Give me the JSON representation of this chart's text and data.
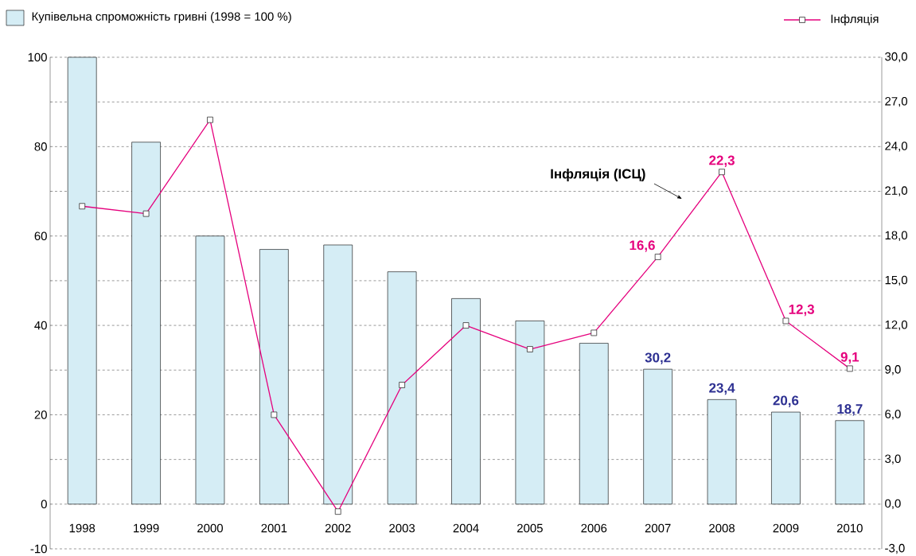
{
  "chart_data": {
    "type": "bar",
    "categories": [
      "1998",
      "1999",
      "2000",
      "2001",
      "2002",
      "2003",
      "2004",
      "2005",
      "2006",
      "2007",
      "2008",
      "2009",
      "2010"
    ],
    "series": [
      {
        "name": "Купівельна спроможність гривні (1998 = 100 %)",
        "color": "#d5edf5",
        "values": [
          100,
          81,
          60,
          57,
          58,
          52,
          46,
          41,
          36,
          30.2,
          23.4,
          20.6,
          18.7
        ],
        "value_labels": [
          null,
          null,
          null,
          null,
          null,
          null,
          null,
          null,
          null,
          "30,2",
          "23,4",
          "20,6",
          "18,7"
        ]
      },
      {
        "name": "Інфляція",
        "type": "line",
        "axis": "y2",
        "color": "#e5007d",
        "marker": "square",
        "values": [
          20.0,
          19.5,
          25.8,
          6.0,
          -0.5,
          8.0,
          12.0,
          10.4,
          11.5,
          16.6,
          22.3,
          12.3,
          9.1
        ],
        "value_labels": [
          null,
          null,
          null,
          null,
          null,
          null,
          null,
          null,
          null,
          "16,6",
          "22,3",
          "12,3",
          "9,1"
        ]
      }
    ],
    "ylim": [
      -10,
      100
    ],
    "yticks": [
      -10,
      0,
      {
        "value": 10,
        "label": null
      },
      20,
      {
        "value": 30,
        "label": null
      },
      40,
      {
        "value": 50,
        "label": null
      },
      60,
      {
        "value": 70,
        "label": null
      },
      80,
      {
        "value": 90,
        "label": null
      },
      100
    ],
    "y2lim": [
      -3,
      30
    ],
    "y2ticks": [
      {
        "value": -3,
        "label": "-3,0"
      },
      {
        "value": 0,
        "label": "0,0"
      },
      {
        "value": 3,
        "label": "3,0"
      },
      {
        "value": 6,
        "label": "6,0"
      },
      {
        "value": 9,
        "label": "9,0"
      },
      {
        "value": 12,
        "label": "12,0"
      },
      {
        "value": 15,
        "label": "15,0"
      },
      {
        "value": 18,
        "label": "18,0"
      },
      {
        "value": 21,
        "label": "21,0"
      },
      {
        "value": 24,
        "label": "24,0"
      },
      {
        "value": 27,
        "label": "27,0"
      },
      {
        "value": 30,
        "label": "30,0"
      }
    ],
    "grid": "y",
    "legend": "top",
    "annotations": [
      "Інфляція (ІСЦ)"
    ]
  }
}
